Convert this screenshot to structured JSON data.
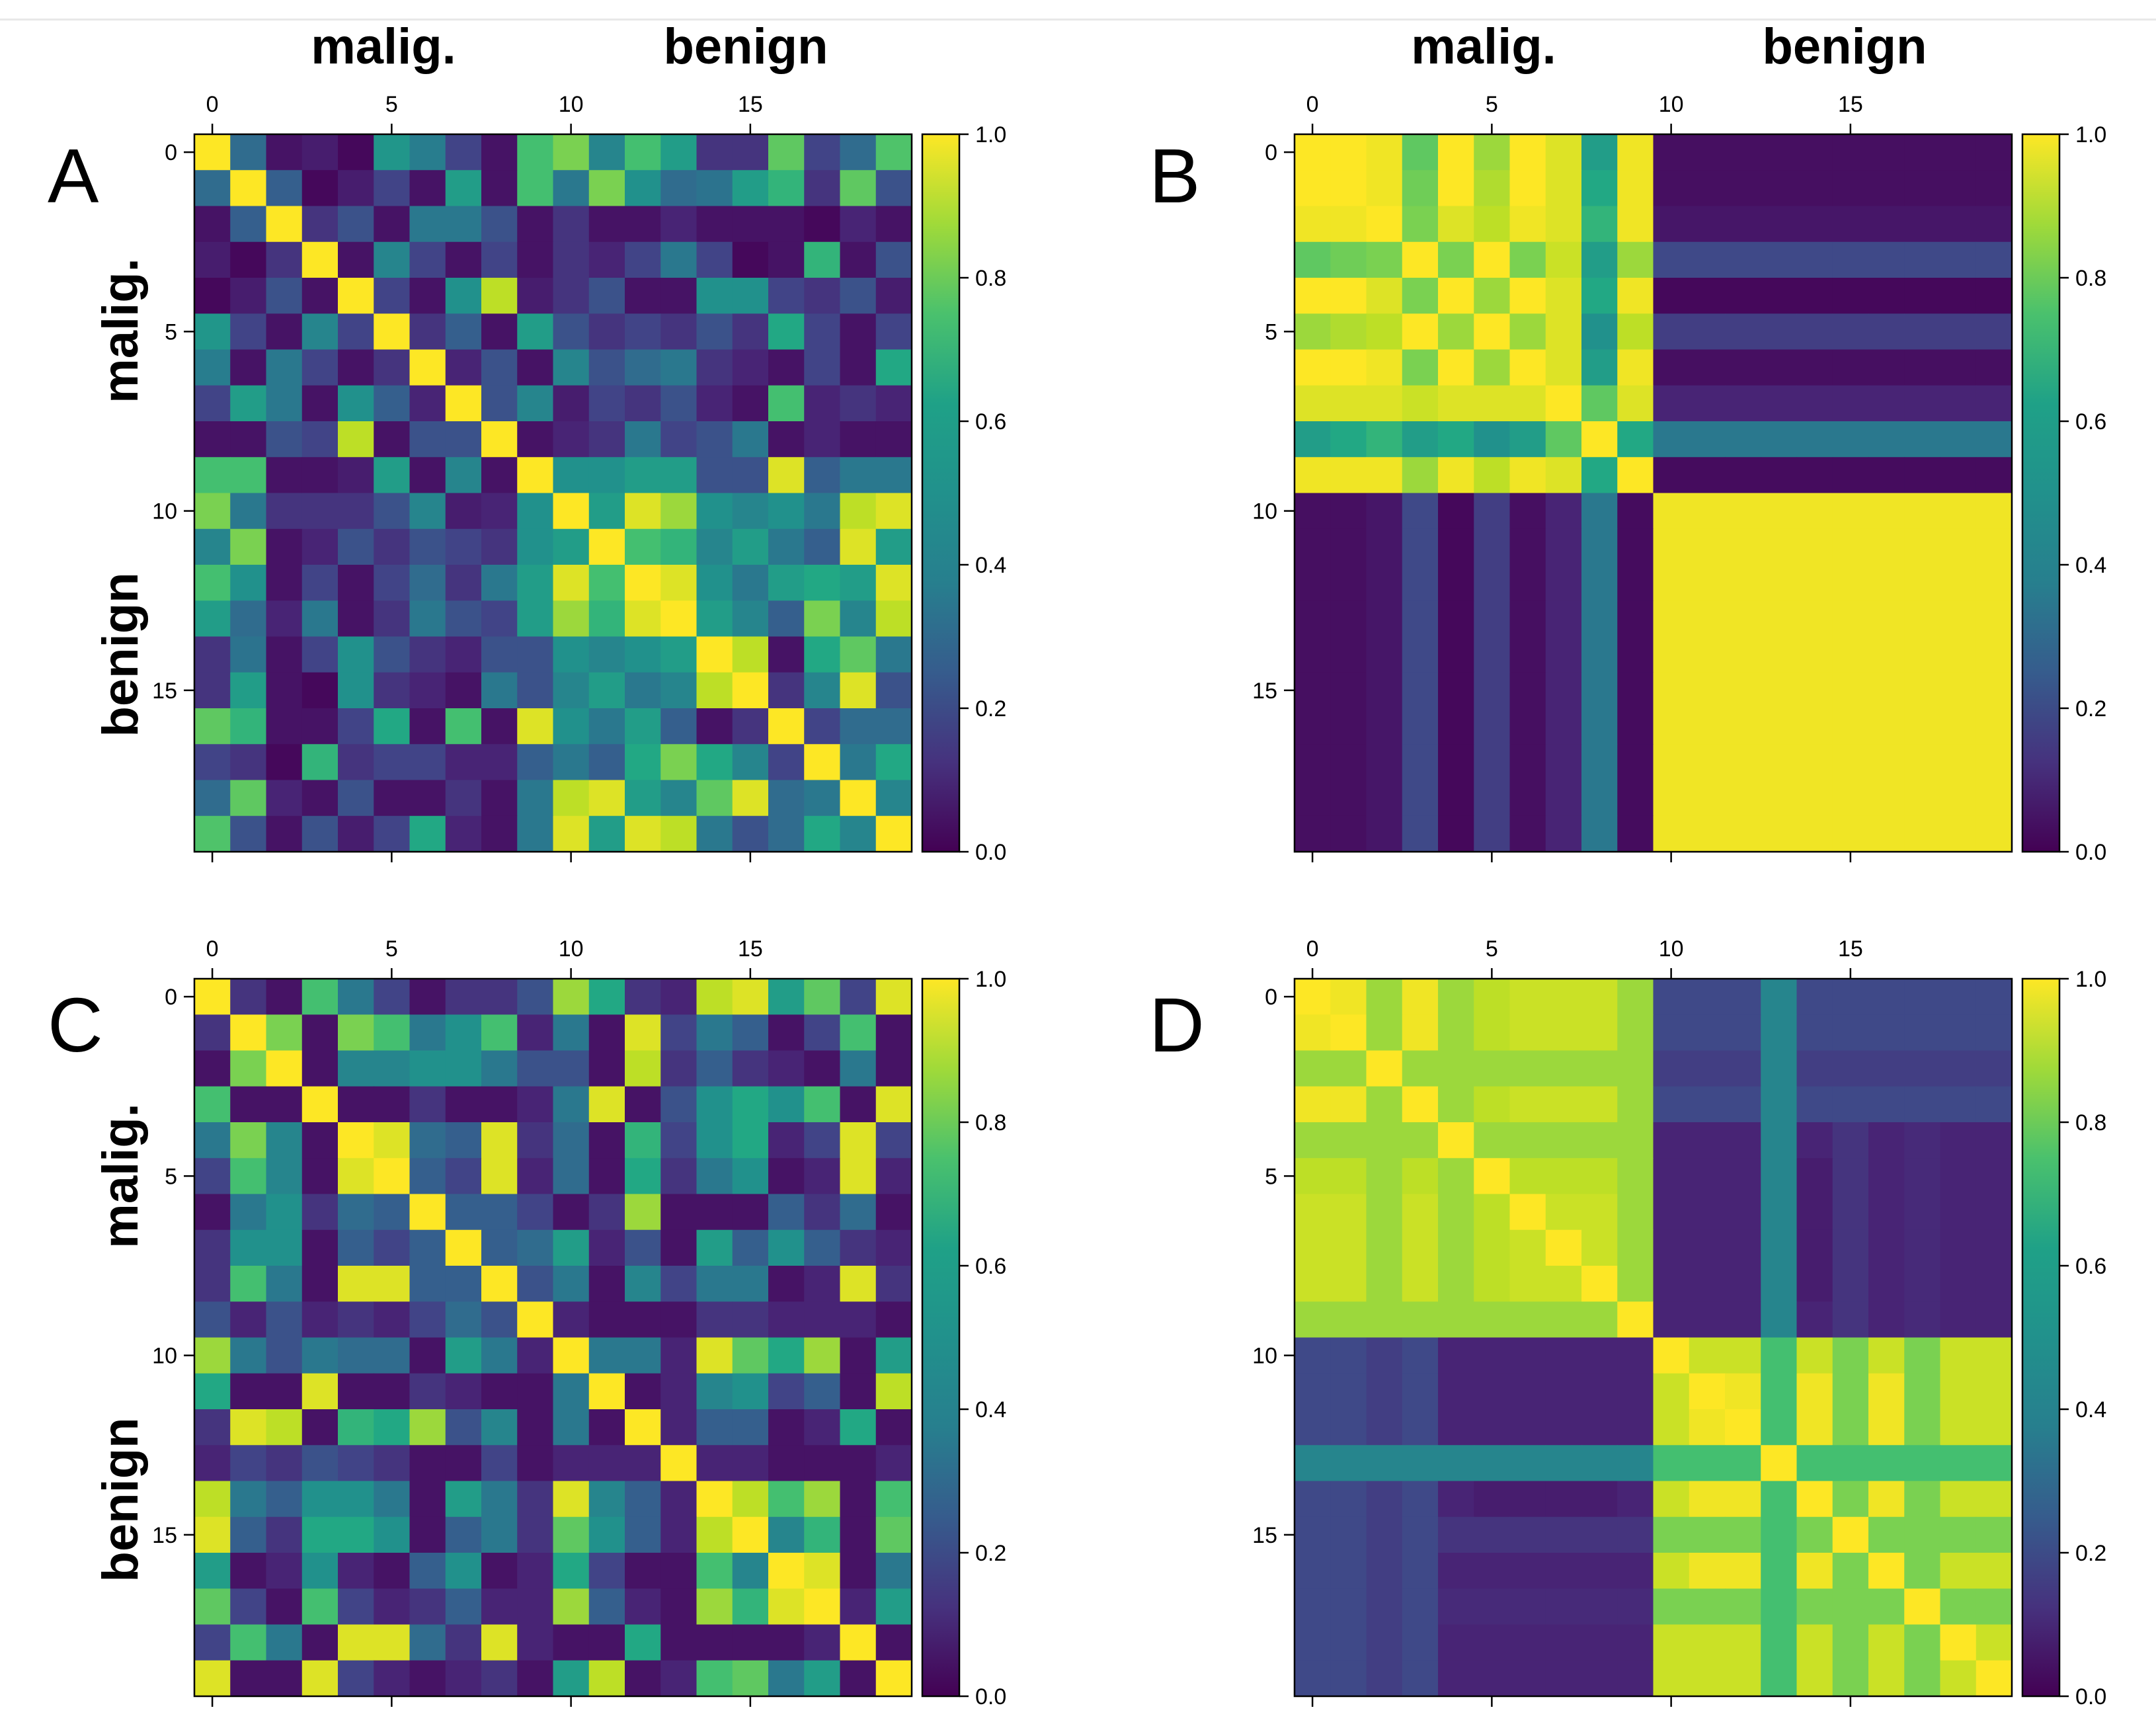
{
  "figure": {
    "colormap": "viridis",
    "cbar_ticks": [
      "0.0",
      "0.2",
      "0.4",
      "0.6",
      "0.8",
      "1.0"
    ]
  },
  "chart_data": [
    {
      "panel": "A",
      "type": "heatmap",
      "size": 20,
      "group_labels": {
        "columns": [
          "malig.",
          "benign"
        ],
        "rows": [
          "malig.",
          "benign"
        ]
      },
      "x_ticks": [
        0,
        5,
        10,
        15
      ],
      "y_ticks": [
        0,
        5,
        10,
        15
      ],
      "clim": [
        0,
        1
      ],
      "values": [
        [
          1.0,
          0.35,
          0.05,
          0.08,
          0.02,
          0.52,
          0.42,
          0.2,
          0.05,
          0.7,
          0.8,
          0.45,
          0.7,
          0.55,
          0.15,
          0.15,
          0.75,
          0.2,
          0.35,
          0.72
        ],
        [
          0.35,
          1.0,
          0.3,
          0.02,
          0.08,
          0.2,
          0.05,
          0.55,
          0.05,
          0.7,
          0.4,
          0.8,
          0.5,
          0.35,
          0.38,
          0.55,
          0.65,
          0.15,
          0.75,
          0.25
        ],
        [
          0.05,
          0.3,
          1.0,
          0.15,
          0.25,
          0.05,
          0.4,
          0.4,
          0.25,
          0.05,
          0.15,
          0.05,
          0.05,
          0.1,
          0.05,
          0.05,
          0.05,
          0.02,
          0.1,
          0.05
        ],
        [
          0.08,
          0.02,
          0.15,
          1.0,
          0.05,
          0.45,
          0.2,
          0.05,
          0.2,
          0.05,
          0.15,
          0.1,
          0.2,
          0.4,
          0.2,
          0.02,
          0.05,
          0.65,
          0.05,
          0.25
        ],
        [
          0.02,
          0.08,
          0.25,
          0.05,
          1.0,
          0.2,
          0.05,
          0.5,
          0.9,
          0.08,
          0.15,
          0.25,
          0.05,
          0.05,
          0.5,
          0.5,
          0.2,
          0.15,
          0.25,
          0.08
        ],
        [
          0.52,
          0.2,
          0.05,
          0.45,
          0.2,
          1.0,
          0.15,
          0.3,
          0.05,
          0.55,
          0.25,
          0.15,
          0.2,
          0.15,
          0.25,
          0.15,
          0.6,
          0.2,
          0.05,
          0.2
        ],
        [
          0.42,
          0.05,
          0.4,
          0.2,
          0.05,
          0.15,
          1.0,
          0.1,
          0.25,
          0.05,
          0.45,
          0.25,
          0.35,
          0.4,
          0.15,
          0.1,
          0.05,
          0.2,
          0.05,
          0.6
        ],
        [
          0.2,
          0.55,
          0.4,
          0.05,
          0.5,
          0.3,
          0.1,
          1.0,
          0.25,
          0.45,
          0.08,
          0.2,
          0.15,
          0.25,
          0.1,
          0.05,
          0.7,
          0.1,
          0.15,
          0.1
        ],
        [
          0.05,
          0.05,
          0.25,
          0.2,
          0.9,
          0.05,
          0.25,
          0.25,
          1.0,
          0.05,
          0.1,
          0.15,
          0.4,
          0.2,
          0.25,
          0.4,
          0.05,
          0.1,
          0.05,
          0.05
        ],
        [
          0.7,
          0.7,
          0.05,
          0.05,
          0.08,
          0.55,
          0.05,
          0.45,
          0.05,
          1.0,
          0.5,
          0.5,
          0.55,
          0.55,
          0.25,
          0.25,
          0.95,
          0.3,
          0.4,
          0.4
        ],
        [
          0.8,
          0.4,
          0.15,
          0.15,
          0.15,
          0.25,
          0.45,
          0.08,
          0.1,
          0.5,
          1.0,
          0.55,
          0.95,
          0.85,
          0.5,
          0.45,
          0.5,
          0.4,
          0.9,
          0.95
        ],
        [
          0.45,
          0.8,
          0.05,
          0.1,
          0.25,
          0.15,
          0.25,
          0.2,
          0.15,
          0.5,
          0.55,
          1.0,
          0.7,
          0.65,
          0.45,
          0.55,
          0.4,
          0.3,
          0.95,
          0.55
        ],
        [
          0.7,
          0.5,
          0.05,
          0.2,
          0.05,
          0.2,
          0.35,
          0.15,
          0.4,
          0.55,
          0.95,
          0.7,
          1.0,
          0.95,
          0.5,
          0.4,
          0.55,
          0.6,
          0.55,
          0.95
        ],
        [
          0.55,
          0.35,
          0.1,
          0.4,
          0.05,
          0.15,
          0.4,
          0.25,
          0.2,
          0.55,
          0.85,
          0.65,
          0.95,
          1.0,
          0.55,
          0.45,
          0.3,
          0.8,
          0.45,
          0.9
        ],
        [
          0.15,
          0.38,
          0.05,
          0.2,
          0.5,
          0.25,
          0.15,
          0.1,
          0.25,
          0.25,
          0.5,
          0.45,
          0.5,
          0.55,
          1.0,
          0.9,
          0.05,
          0.6,
          0.75,
          0.4
        ],
        [
          0.15,
          0.55,
          0.05,
          0.02,
          0.5,
          0.15,
          0.1,
          0.05,
          0.4,
          0.25,
          0.45,
          0.55,
          0.4,
          0.45,
          0.9,
          1.0,
          0.15,
          0.45,
          0.95,
          0.25
        ],
        [
          0.75,
          0.65,
          0.05,
          0.05,
          0.2,
          0.6,
          0.05,
          0.7,
          0.05,
          0.95,
          0.5,
          0.4,
          0.55,
          0.3,
          0.05,
          0.15,
          1.0,
          0.2,
          0.35,
          0.35
        ],
        [
          0.2,
          0.15,
          0.02,
          0.65,
          0.15,
          0.2,
          0.2,
          0.1,
          0.1,
          0.3,
          0.4,
          0.3,
          0.6,
          0.8,
          0.6,
          0.45,
          0.2,
          1.0,
          0.4,
          0.6
        ],
        [
          0.35,
          0.75,
          0.1,
          0.05,
          0.25,
          0.05,
          0.05,
          0.15,
          0.05,
          0.4,
          0.9,
          0.95,
          0.55,
          0.45,
          0.75,
          0.95,
          0.35,
          0.4,
          1.0,
          0.45
        ],
        [
          0.72,
          0.25,
          0.05,
          0.25,
          0.08,
          0.2,
          0.6,
          0.1,
          0.05,
          0.4,
          0.95,
          0.55,
          0.95,
          0.9,
          0.4,
          0.25,
          0.35,
          0.6,
          0.45,
          1.0
        ]
      ]
    },
    {
      "panel": "B",
      "type": "heatmap",
      "size": 20,
      "group_labels": {
        "columns": [
          "malig.",
          "benign"
        ],
        "rows": []
      },
      "x_ticks": [
        0,
        5,
        10,
        15
      ],
      "y_ticks": [
        0,
        5,
        10,
        15
      ],
      "clim": [
        0,
        1
      ],
      "group_split": 10,
      "within_malig": [
        [
          1.0,
          1.0,
          0.98,
          0.75,
          1.0,
          0.85,
          1.0,
          0.95,
          0.55,
          0.98
        ],
        [
          1.0,
          1.0,
          0.98,
          0.78,
          1.0,
          0.88,
          1.0,
          0.95,
          0.6,
          0.98
        ],
        [
          0.98,
          0.98,
          1.0,
          0.8,
          0.95,
          0.9,
          0.98,
          0.95,
          0.65,
          0.98
        ],
        [
          0.75,
          0.78,
          0.8,
          1.0,
          0.8,
          1.0,
          0.8,
          0.92,
          0.55,
          0.85
        ],
        [
          1.0,
          1.0,
          0.95,
          0.8,
          1.0,
          0.85,
          1.0,
          0.95,
          0.6,
          0.98
        ],
        [
          0.85,
          0.88,
          0.9,
          1.0,
          0.85,
          1.0,
          0.85,
          0.95,
          0.5,
          0.9
        ],
        [
          1.0,
          1.0,
          0.98,
          0.8,
          1.0,
          0.85,
          1.0,
          0.95,
          0.55,
          0.98
        ],
        [
          0.95,
          0.95,
          0.95,
          0.92,
          0.95,
          0.95,
          0.95,
          1.0,
          0.75,
          0.95
        ],
        [
          0.55,
          0.6,
          0.65,
          0.55,
          0.6,
          0.5,
          0.55,
          0.75,
          1.0,
          0.6
        ],
        [
          0.98,
          0.98,
          0.98,
          0.85,
          0.98,
          0.9,
          0.98,
          0.95,
          0.6,
          1.0
        ]
      ],
      "malig_to_benign_level": [
        0.04,
        0.04,
        0.06,
        0.22,
        0.02,
        0.18,
        0.04,
        0.1,
        0.4,
        0.03
      ],
      "benign_block_level": 0.98
    },
    {
      "panel": "C",
      "type": "heatmap",
      "size": 20,
      "group_labels": {
        "columns": [],
        "rows": [
          "malig.",
          "benign"
        ]
      },
      "x_ticks": [
        0,
        5,
        10,
        15
      ],
      "y_ticks": [
        0,
        5,
        10,
        15
      ],
      "clim": [
        0,
        1
      ],
      "values": [
        [
          1.0,
          0.15,
          0.05,
          0.7,
          0.4,
          0.2,
          0.05,
          0.15,
          0.15,
          0.25,
          0.85,
          0.6,
          0.15,
          0.1,
          0.9,
          0.95,
          0.55,
          0.75,
          0.2,
          0.95
        ],
        [
          0.15,
          1.0,
          0.8,
          0.05,
          0.8,
          0.7,
          0.4,
          0.5,
          0.7,
          0.1,
          0.4,
          0.05,
          0.95,
          0.2,
          0.4,
          0.3,
          0.05,
          0.2,
          0.7,
          0.05
        ],
        [
          0.05,
          0.8,
          1.0,
          0.05,
          0.45,
          0.45,
          0.5,
          0.5,
          0.4,
          0.25,
          0.25,
          0.05,
          0.9,
          0.15,
          0.3,
          0.15,
          0.1,
          0.05,
          0.4,
          0.05
        ],
        [
          0.7,
          0.05,
          0.05,
          1.0,
          0.05,
          0.05,
          0.15,
          0.05,
          0.05,
          0.1,
          0.4,
          0.95,
          0.05,
          0.25,
          0.5,
          0.6,
          0.5,
          0.7,
          0.05,
          0.95
        ],
        [
          0.4,
          0.8,
          0.45,
          0.05,
          1.0,
          0.95,
          0.35,
          0.3,
          0.95,
          0.15,
          0.35,
          0.05,
          0.65,
          0.2,
          0.5,
          0.6,
          0.1,
          0.2,
          0.95,
          0.2
        ],
        [
          0.2,
          0.7,
          0.45,
          0.05,
          0.95,
          1.0,
          0.3,
          0.2,
          0.95,
          0.1,
          0.35,
          0.05,
          0.6,
          0.15,
          0.4,
          0.5,
          0.05,
          0.1,
          0.95,
          0.1
        ],
        [
          0.05,
          0.4,
          0.5,
          0.15,
          0.35,
          0.3,
          1.0,
          0.3,
          0.3,
          0.2,
          0.05,
          0.15,
          0.85,
          0.05,
          0.05,
          0.05,
          0.3,
          0.15,
          0.35,
          0.05
        ],
        [
          0.15,
          0.5,
          0.5,
          0.05,
          0.3,
          0.2,
          0.3,
          1.0,
          0.3,
          0.35,
          0.55,
          0.1,
          0.25,
          0.05,
          0.55,
          0.3,
          0.5,
          0.3,
          0.15,
          0.1
        ],
        [
          0.15,
          0.7,
          0.4,
          0.05,
          0.95,
          0.95,
          0.3,
          0.3,
          1.0,
          0.25,
          0.4,
          0.05,
          0.45,
          0.2,
          0.4,
          0.4,
          0.05,
          0.1,
          0.95,
          0.15
        ],
        [
          0.25,
          0.1,
          0.25,
          0.1,
          0.15,
          0.1,
          0.2,
          0.35,
          0.25,
          1.0,
          0.1,
          0.05,
          0.05,
          0.05,
          0.15,
          0.15,
          0.1,
          0.1,
          0.1,
          0.05
        ],
        [
          0.85,
          0.4,
          0.25,
          0.4,
          0.35,
          0.35,
          0.05,
          0.55,
          0.4,
          0.1,
          1.0,
          0.4,
          0.4,
          0.1,
          0.95,
          0.75,
          0.6,
          0.85,
          0.05,
          0.55
        ],
        [
          0.6,
          0.05,
          0.05,
          0.95,
          0.05,
          0.05,
          0.15,
          0.1,
          0.05,
          0.05,
          0.4,
          1.0,
          0.05,
          0.1,
          0.45,
          0.5,
          0.2,
          0.3,
          0.05,
          0.9
        ],
        [
          0.15,
          0.95,
          0.9,
          0.05,
          0.65,
          0.6,
          0.85,
          0.25,
          0.45,
          0.05,
          0.4,
          0.05,
          1.0,
          0.1,
          0.3,
          0.3,
          0.05,
          0.1,
          0.6,
          0.05
        ],
        [
          0.1,
          0.2,
          0.15,
          0.25,
          0.2,
          0.15,
          0.05,
          0.05,
          0.2,
          0.05,
          0.1,
          0.1,
          0.1,
          1.0,
          0.1,
          0.1,
          0.05,
          0.05,
          0.05,
          0.1
        ],
        [
          0.9,
          0.4,
          0.3,
          0.5,
          0.5,
          0.4,
          0.05,
          0.55,
          0.4,
          0.15,
          0.95,
          0.45,
          0.3,
          0.1,
          1.0,
          0.9,
          0.7,
          0.85,
          0.05,
          0.7
        ],
        [
          0.95,
          0.3,
          0.15,
          0.6,
          0.6,
          0.5,
          0.05,
          0.3,
          0.4,
          0.15,
          0.75,
          0.5,
          0.3,
          0.1,
          0.9,
          1.0,
          0.45,
          0.65,
          0.05,
          0.75
        ],
        [
          0.55,
          0.05,
          0.1,
          0.5,
          0.1,
          0.05,
          0.3,
          0.5,
          0.05,
          0.1,
          0.6,
          0.2,
          0.05,
          0.05,
          0.7,
          0.45,
          1.0,
          0.95,
          0.05,
          0.4
        ],
        [
          0.75,
          0.2,
          0.05,
          0.7,
          0.2,
          0.1,
          0.15,
          0.3,
          0.1,
          0.1,
          0.85,
          0.3,
          0.1,
          0.05,
          0.85,
          0.65,
          0.95,
          1.0,
          0.1,
          0.55
        ],
        [
          0.2,
          0.7,
          0.4,
          0.05,
          0.95,
          0.95,
          0.35,
          0.15,
          0.95,
          0.1,
          0.05,
          0.05,
          0.6,
          0.05,
          0.05,
          0.05,
          0.05,
          0.1,
          1.0,
          0.05
        ],
        [
          0.95,
          0.05,
          0.05,
          0.95,
          0.2,
          0.1,
          0.05,
          0.1,
          0.15,
          0.05,
          0.55,
          0.9,
          0.05,
          0.1,
          0.7,
          0.75,
          0.4,
          0.55,
          0.05,
          1.0
        ]
      ]
    },
    {
      "panel": "D",
      "type": "heatmap",
      "size": 20,
      "group_labels": {
        "columns": [],
        "rows": []
      },
      "x_ticks": [
        0,
        5,
        10,
        15
      ],
      "y_ticks": [
        0,
        5,
        10,
        15
      ],
      "clim": [
        0,
        1
      ],
      "within_malig_pattern": [
        1.0,
        0.98,
        0.85,
        0.98,
        0.85,
        0.9,
        0.92,
        0.92,
        0.92,
        0.85
      ],
      "malig_to_benign_level": [
        0.22,
        0.22,
        0.18,
        0.22,
        0.1,
        0.08,
        0.08,
        0.08,
        0.08,
        0.1
      ],
      "within_benign_pattern": [
        0.92,
        0.98,
        0.98,
        0.7,
        0.98,
        0.8,
        0.98,
        0.8,
        0.92,
        0.92
      ],
      "benign_to_malig_level": [
        0.1,
        0.1,
        0.1,
        0.45,
        0.05,
        0.15,
        0.1,
        0.12,
        0.1,
        0.1
      ]
    }
  ]
}
